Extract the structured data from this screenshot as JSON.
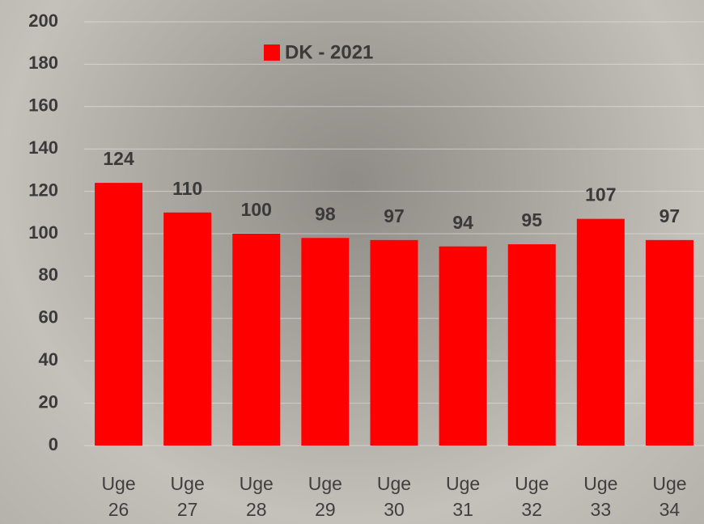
{
  "chart_data": {
    "type": "bar",
    "categories": [
      "Uge 26",
      "Uge 27",
      "Uge 28",
      "Uge 29",
      "Uge 30",
      "Uge 31",
      "Uge 32",
      "Uge 33",
      "Uge 34"
    ],
    "series": [
      {
        "name": "DK - 2021",
        "color": "#ff0000",
        "values": [
          124,
          110,
          100,
          98,
          97,
          94,
          95,
          107,
          97
        ]
      }
    ],
    "ylim": [
      0,
      200
    ],
    "yticks": [
      0,
      20,
      40,
      60,
      80,
      100,
      120,
      140,
      160,
      180,
      200
    ],
    "grid": true,
    "legend": "top"
  }
}
